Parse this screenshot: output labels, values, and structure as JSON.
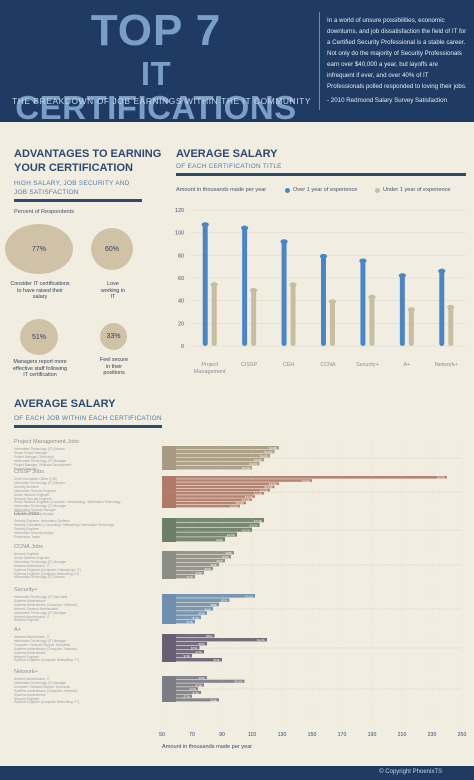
{
  "header": {
    "title_line1": "TOP 7",
    "title_line2": "IT CERTIFICATIONS",
    "subtitle": "THE BREAKDOWN OF JOB EARNINGS WITHIN THE IT COMMUNITY",
    "quote": "In a world of unsure possibilities, economic downturns, and job dissatisfaction the field of IT for a Certified Security Professional is a stable career. Not only do the majority of Security Professionals earn over $40,000 a year, but layoffs are infrequent if ever, and over 40% of IT Professionals polled responded to loving their jobs.",
    "quote_source": "- 2010 Redmond Salary Survey Satisfaction"
  },
  "advantages": {
    "title_line1": "ADVANTAGES TO EARNING",
    "title_line2": "YOUR CERTIFICATION",
    "subtitle_line1": "HIGH SALARY, JOB SECURITY AND",
    "subtitle_line2": "JOB SATISFACTION",
    "percent_label": "Percent of Respondents",
    "items": [
      {
        "value": "77%",
        "label": "Consider IT certifications to have raised their salary"
      },
      {
        "value": "60%",
        "label": "Love working in IT"
      },
      {
        "value": "51%",
        "label": "Managers report more effective staff following IT certification"
      },
      {
        "value": "33%",
        "label": "Feel secure in their positions"
      }
    ]
  },
  "salary_chart": {
    "title": "AVERAGE SALARY",
    "subtitle": "OF EACH CERTIFICATION TITLE",
    "units": "Amount in thousands made per year"
  },
  "job_chart": {
    "title": "AVERAGE SALARY",
    "subtitle": "OF EACH JOB WITHIN EACH CERTIFICATION",
    "xlabel": "Amount in thousands made per year"
  },
  "chart_data": [
    {
      "type": "bar",
      "categories": [
        "Project Management",
        "CISSP",
        "CEH",
        "CCNA",
        "Security+",
        "A+",
        "Network+"
      ],
      "series": [
        {
          "name": "Over 1 year of experience",
          "values": [
            108,
            105,
            93,
            80,
            76,
            63,
            67
          ]
        },
        {
          "name": "Under 1 year of experience",
          "values": [
            55,
            50,
            55,
            40,
            44,
            33,
            35
          ]
        }
      ],
      "ylim": [
        0,
        120
      ],
      "yticks": [
        0,
        20,
        40,
        60,
        80,
        100,
        120
      ],
      "colors": [
        "#4a86c5",
        "#c9bda1"
      ],
      "legend": "top"
    },
    {
      "type": "bar",
      "orientation": "horizontal",
      "xlim": [
        50,
        250
      ],
      "xticks": [
        50,
        70,
        90,
        110,
        130,
        150,
        170,
        190,
        210,
        230,
        250
      ],
      "groups": [
        {
          "name": "Project Management Jobs",
          "color": "#a89a82",
          "jobs": [
            "Information Technology (IT) Director",
            "Senior Project Manager",
            "Project Manager (Technical)",
            "Information Technology (IT) Manager",
            "Project Manager, Software Development",
            "Project Manager"
          ],
          "values": [
            128,
            125,
            122,
            118,
            115,
            110
          ]
        },
        {
          "name": "CISSP Jobs",
          "color": "#b07a68",
          "jobs": [
            "Chief Information Officer (CIO)",
            "Information Technology (IT) Director",
            "Security Architect",
            "Information Security Engineer",
            "Senior Network Engineer",
            "Network Security Engineer",
            "Senior Network Engineer (Computer / Networking) / Information Technology",
            "Information Technology (IT) Manager",
            "Information Security Manager",
            "Information Security Analyst"
          ],
          "values": [
            240,
            150,
            128,
            125,
            122,
            118,
            112,
            110,
            106,
            102
          ]
        },
        {
          "name": "CEH Jobs",
          "color": "#6b7f66",
          "jobs": [
            "Security Engineer, Information Systems",
            "Security Consultant, (Computing / Networking / Information Technology",
            "Security Engineer",
            "Information Security Analyst",
            "Penetration Tester"
          ],
          "values": [
            118,
            115,
            110,
            100,
            92
          ]
        },
        {
          "name": "CCNA Jobs",
          "color": "#8c8e86",
          "jobs": [
            "Network Engineer",
            "Senior Network Engineer",
            "Information Technology (IT) Manager",
            "Network Administrator, IT",
            "Systems Engineer (Computer / Networking / IT)",
            "Systems Engineer (Computer Networking / IT)",
            "Information Technology (IT) Director"
          ],
          "values": [
            98,
            96,
            92,
            88,
            84,
            78,
            72
          ]
        },
        {
          "name": "Security+",
          "color": "#6f8fae",
          "jobs": [
            "Information Technology (IT) Specialist",
            "Systems Administrator",
            "Systems Administrator (Computer / Network)",
            "Network Systems Administrator",
            "Information Technology (IT) Manager",
            "Network Administrator, IT",
            "Network Engineer"
          ],
          "values": [
            112,
            95,
            88,
            84,
            80,
            76,
            72
          ]
        },
        {
          "name": "A+",
          "color": "#6a5f72",
          "jobs": [
            "Network Administrator, IT",
            "Information Technology (IT) Manager",
            "Computer / Network Support Technician",
            "Systems Administrator (Computer / Network)",
            "Systems Administrator",
            "Network Engineer",
            "Systems Engineer (Computer Networking / IT)"
          ],
          "values": [
            85,
            120,
            80,
            75,
            78,
            70,
            90
          ]
        },
        {
          "name": "Network+",
          "color": "#7c7c86",
          "jobs": [
            "Network Administrator, IT",
            "Information Technology (IT) Manager",
            "Computer / Network Support Technician",
            "Systems Administrator (Computer / Network)",
            "Systems Administrator",
            "Network Engineer",
            "Systems Engineer (Computer Networking / IT)"
          ],
          "values": [
            80,
            105,
            78,
            74,
            76,
            70,
            88
          ]
        }
      ]
    }
  ],
  "footer": {
    "copyright": "© Copyright PhoenixTS"
  }
}
